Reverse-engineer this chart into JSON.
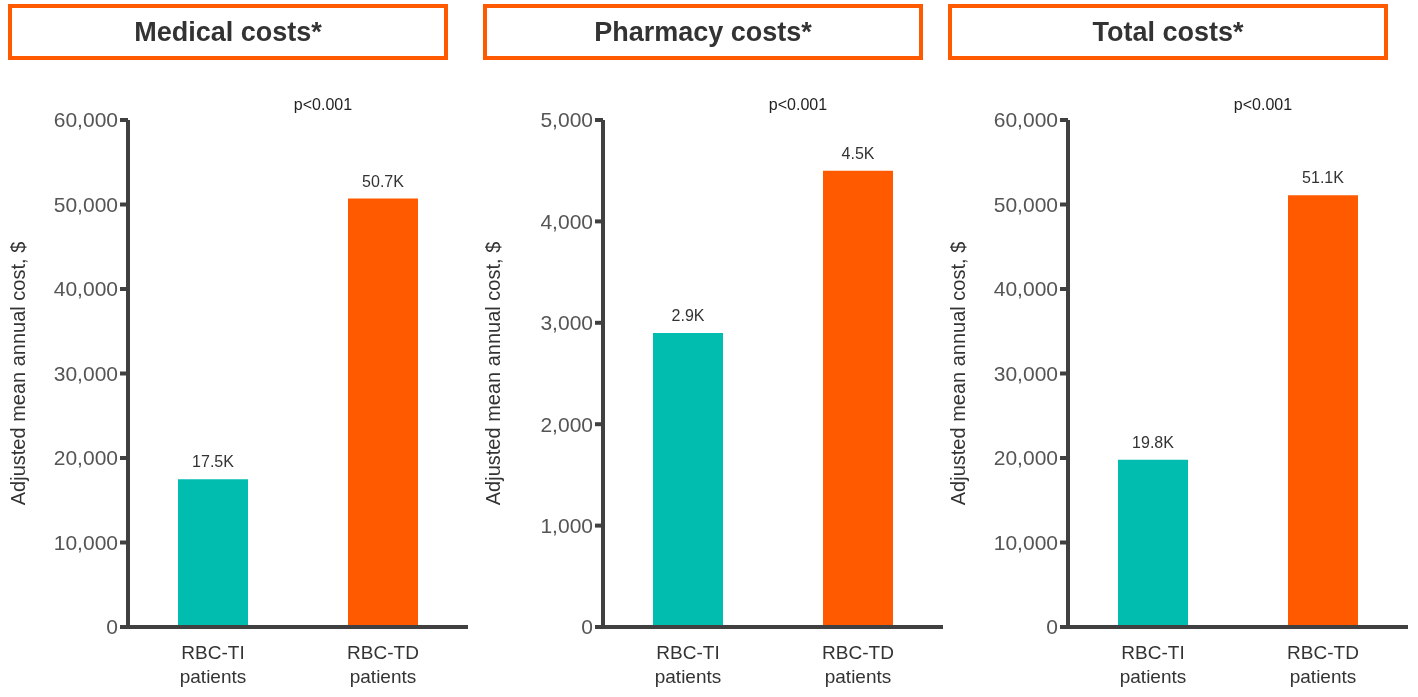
{
  "chart_data": [
    {
      "type": "bar",
      "title": "Medical costs*",
      "ylabel": "Adjusted mean annual cost, $",
      "annotations": [
        "p<0.001"
      ],
      "categories": [
        "RBC-TI patients",
        "RBC-TD patients"
      ],
      "values": [
        17500,
        50700
      ],
      "colors": [
        "#00bdb0",
        "#ff5a00"
      ],
      "value_labels": [
        "17.5K",
        "50.7K"
      ],
      "ylim": [
        0,
        60000
      ],
      "yticks": [
        {
          "value": 0,
          "label": "0"
        },
        {
          "value": 10000,
          "label": "10,000"
        },
        {
          "value": 20000,
          "label": "20,000"
        },
        {
          "value": 30000,
          "label": "30,000"
        },
        {
          "value": 40000,
          "label": "40,000"
        },
        {
          "value": 50000,
          "label": "50,000"
        },
        {
          "value": 60000,
          "label": "60,000"
        }
      ],
      "grid": false,
      "legend": false
    },
    {
      "type": "bar",
      "title": "Pharmacy costs*",
      "ylabel": "Adjusted mean annual cost, $",
      "annotations": [
        "p<0.001"
      ],
      "categories": [
        "RBC-TI patients",
        "RBC-TD patients"
      ],
      "values": [
        2900,
        4500
      ],
      "colors": [
        "#00bdb0",
        "#ff5a00"
      ],
      "value_labels": [
        "2.9K",
        "4.5K"
      ],
      "ylim": [
        0,
        5000
      ],
      "yticks": [
        {
          "value": 0,
          "label": "0"
        },
        {
          "value": 1000,
          "label": "1,000"
        },
        {
          "value": 2000,
          "label": "2,000"
        },
        {
          "value": 3000,
          "label": "3,000"
        },
        {
          "value": 4000,
          "label": "4,000"
        },
        {
          "value": 5000,
          "label": "5,000"
        }
      ],
      "grid": false,
      "legend": false
    },
    {
      "type": "bar",
      "title": "Total costs*",
      "ylabel": "Adjusted mean annual cost, $",
      "annotations": [
        "p<0.001"
      ],
      "categories": [
        "RBC-TI patients",
        "RBC-TD patients"
      ],
      "values": [
        19800,
        51100
      ],
      "colors": [
        "#00bdb0",
        "#ff5a00"
      ],
      "value_labels": [
        "19.8K",
        "51.1K"
      ],
      "ylim": [
        0,
        60000
      ],
      "yticks": [
        {
          "value": 0,
          "label": "0"
        },
        {
          "value": 10000,
          "label": "10,000"
        },
        {
          "value": 20000,
          "label": "20,000"
        },
        {
          "value": 30000,
          "label": "30,000"
        },
        {
          "value": 40000,
          "label": "40,000"
        },
        {
          "value": 50000,
          "label": "50,000"
        },
        {
          "value": 60000,
          "label": "60,000"
        }
      ],
      "grid": false,
      "legend": false
    }
  ]
}
